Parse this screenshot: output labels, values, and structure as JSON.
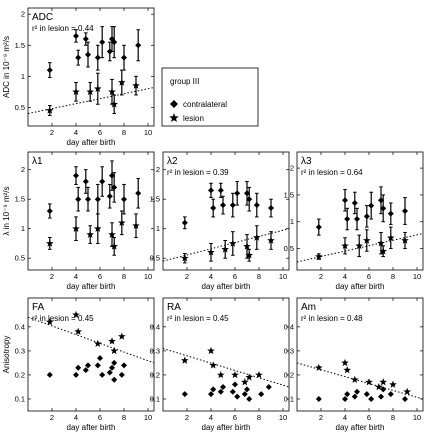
{
  "legend": {
    "title": "group III",
    "entries": [
      "contralateral",
      "lesion"
    ]
  },
  "colors": {
    "ink": "#000000",
    "background": "#ffffff"
  },
  "chart_data": [
    {
      "type": "scatter",
      "title": "ADC",
      "annotation": "r² in lesion = 0.44",
      "xlabel": "day after birth",
      "ylabel": "ADC in 10⁻⁹ m²/s",
      "xlim": [
        0,
        10.5
      ],
      "ylim": [
        0.2,
        2.1
      ],
      "xticks": [
        2,
        4,
        6,
        8,
        10
      ],
      "yticks": [
        0.5,
        1,
        1.5,
        2
      ],
      "yticklabels": [
        "0.5",
        "1",
        "1.5",
        "2"
      ],
      "grid": false,
      "trendline": [
        [
          0,
          0.4
        ],
        [
          10.5,
          0.82
        ]
      ],
      "series": [
        {
          "name": "contralateral",
          "marker": "diamond",
          "points": [
            [
              2,
              1.1,
              0.12
            ],
            [
              4,
              1.65,
              0.1
            ],
            [
              4,
              1.3,
              0.12
            ],
            [
              5,
              1.6,
              0.1
            ],
            [
              5,
              1.35,
              0.2
            ],
            [
              6,
              1.55,
              0.25
            ],
            [
              6,
              1.3,
              0.2
            ],
            [
              7,
              1.6,
              0.2
            ],
            [
              7,
              1.55,
              0.25
            ],
            [
              7,
              1.4,
              0.15
            ],
            [
              8,
              1.3,
              0.2
            ],
            [
              9,
              1.5,
              0.25
            ]
          ]
        },
        {
          "name": "lesion",
          "marker": "star",
          "points": [
            [
              2,
              0.45,
              0.08
            ],
            [
              4,
              0.75,
              0.15
            ],
            [
              5,
              0.75,
              0.15
            ],
            [
              6,
              0.8,
              0.25
            ],
            [
              7,
              0.75,
              0.2
            ],
            [
              7,
              0.55,
              0.15
            ],
            [
              8,
              0.9,
              0.2
            ],
            [
              9,
              0.85,
              0.15
            ]
          ]
        }
      ]
    },
    {
      "type": "scatter",
      "title": "λ1",
      "annotation": "",
      "xlabel": "day after birth",
      "ylabel": "λ in 10⁻⁹ m²/s",
      "xlim": [
        0,
        10.5
      ],
      "ylim": [
        0.3,
        2.3
      ],
      "xticks": [
        2,
        4,
        6,
        8,
        10
      ],
      "yticks": [
        0.5,
        1,
        1.5,
        2
      ],
      "yticklabels": [
        "0.5",
        "1",
        "1.5",
        "2"
      ],
      "grid": false,
      "trendline": null,
      "series": [
        {
          "name": "contralateral",
          "marker": "diamond",
          "points": [
            [
              2,
              1.3,
              0.12
            ],
            [
              4,
              1.9,
              0.15
            ],
            [
              4,
              1.5,
              0.2
            ],
            [
              5,
              1.8,
              0.2
            ],
            [
              5,
              1.5,
              0.2
            ],
            [
              6,
              1.8,
              0.25
            ],
            [
              6,
              1.5,
              0.25
            ],
            [
              7,
              1.9,
              0.25
            ],
            [
              7,
              1.7,
              0.25
            ],
            [
              7,
              1.55,
              0.2
            ],
            [
              8,
              1.5,
              0.25
            ],
            [
              9,
              1.6,
              0.25
            ]
          ]
        },
        {
          "name": "lesion",
          "marker": "star",
          "points": [
            [
              2,
              0.75,
              0.1
            ],
            [
              4,
              1.0,
              0.2
            ],
            [
              5,
              0.9,
              0.15
            ],
            [
              6,
              1.0,
              0.25
            ],
            [
              7,
              0.9,
              0.2
            ],
            [
              7,
              0.7,
              0.15
            ],
            [
              8,
              1.1,
              0.2
            ],
            [
              9,
              1.05,
              0.2
            ]
          ]
        }
      ]
    },
    {
      "type": "scatter",
      "title": "λ2",
      "annotation": "r² in lesion = 0.39",
      "xlabel": "day after birth",
      "ylabel": "",
      "xlim": [
        0,
        10.5
      ],
      "ylim": [
        0.3,
        2.3
      ],
      "xticks": [
        2,
        4,
        6,
        8,
        10
      ],
      "yticks": [
        0.5,
        1,
        1.5,
        2
      ],
      "yticklabels": [
        "0.5",
        "1",
        "1.5",
        "2"
      ],
      "grid": false,
      "trendline": [
        [
          0,
          0.45
        ],
        [
          10.5,
          1.0
        ]
      ],
      "series": [
        {
          "name": "contralateral",
          "marker": "diamond",
          "points": [
            [
              2,
              1.1,
              0.1
            ],
            [
              4,
              1.65,
              0.12
            ],
            [
              4,
              1.35,
              0.15
            ],
            [
              5,
              1.65,
              0.12
            ],
            [
              5,
              1.4,
              0.15
            ],
            [
              6,
              1.6,
              0.2
            ],
            [
              6,
              1.4,
              0.2
            ],
            [
              7,
              1.6,
              0.2
            ],
            [
              7,
              1.5,
              0.2
            ],
            [
              8,
              1.4,
              0.2
            ],
            [
              9,
              1.35,
              0.15
            ]
          ]
        },
        {
          "name": "lesion",
          "marker": "star",
          "points": [
            [
              2,
              0.5,
              0.08
            ],
            [
              4,
              0.6,
              0.15
            ],
            [
              5,
              0.65,
              0.15
            ],
            [
              6,
              0.75,
              0.2
            ],
            [
              7,
              0.7,
              0.2
            ],
            [
              7,
              0.55,
              0.1
            ],
            [
              8,
              0.85,
              0.2
            ],
            [
              9,
              0.8,
              0.15
            ]
          ]
        }
      ]
    },
    {
      "type": "scatter",
      "title": "λ3",
      "annotation": "r² in lesion = 0.64",
      "xlabel": "day after birth",
      "ylabel": "",
      "xlim": [
        0,
        10.5
      ],
      "ylim": [
        0.1,
        2.3
      ],
      "xticks": [
        2,
        4,
        6,
        8,
        10
      ],
      "yticks": [
        0.5,
        1,
        1.5,
        2
      ],
      "yticklabels": [
        "0.5",
        "1",
        "1.5",
        "2"
      ],
      "grid": false,
      "trendline": [
        [
          0,
          0.25
        ],
        [
          10.5,
          0.78
        ]
      ],
      "series": [
        {
          "name": "contralateral",
          "marker": "diamond",
          "points": [
            [
              2,
              0.9,
              0.15
            ],
            [
              4,
              1.4,
              0.2
            ],
            [
              4,
              1.05,
              0.2
            ],
            [
              5,
              1.35,
              0.2
            ],
            [
              5,
              1.05,
              0.2
            ],
            [
              6,
              1.3,
              0.25
            ],
            [
              6,
              1.1,
              0.2
            ],
            [
              7,
              1.4,
              0.25
            ],
            [
              7,
              1.25,
              0.25
            ],
            [
              8,
              1.15,
              0.2
            ],
            [
              9,
              1.2,
              0.25
            ]
          ]
        },
        {
          "name": "lesion",
          "marker": "star",
          "points": [
            [
              2,
              0.35,
              0.05
            ],
            [
              4,
              0.55,
              0.15
            ],
            [
              5,
              0.55,
              0.2
            ],
            [
              6,
              0.65,
              0.2
            ],
            [
              7,
              0.6,
              0.2
            ],
            [
              7,
              0.45,
              0.1
            ],
            [
              8,
              0.7,
              0.2
            ],
            [
              9,
              0.65,
              0.15
            ]
          ]
        }
      ]
    },
    {
      "type": "scatter",
      "title": "FA",
      "annotation": "r² in lesion = 0.45",
      "xlabel": "day after birth",
      "ylabel": "Anisotropy",
      "xlim": [
        0,
        10.5
      ],
      "ylim": [
        0.05,
        0.52
      ],
      "xticks": [
        2,
        4,
        6,
        8,
        10
      ],
      "yticks": [
        0.1,
        0.2,
        0.3,
        0.4
      ],
      "yticklabels": [
        "0.1",
        "0.2",
        "0.3",
        "0.4"
      ],
      "grid": false,
      "trendline": [
        [
          0,
          0.44
        ],
        [
          10.5,
          0.25
        ]
      ],
      "series": [
        {
          "name": "contralateral",
          "marker": "diamond",
          "points": [
            [
              2,
              0.2
            ],
            [
              4,
              0.2
            ],
            [
              4,
              0.23
            ],
            [
              5,
              0.22
            ],
            [
              5,
              0.24
            ],
            [
              6,
              0.2
            ],
            [
              6,
              0.24
            ],
            [
              6,
              0.27
            ],
            [
              7,
              0.18
            ],
            [
              7,
              0.21
            ],
            [
              7,
              0.23
            ],
            [
              7,
              0.25
            ],
            [
              8,
              0.2
            ],
            [
              8,
              0.24
            ]
          ]
        },
        {
          "name": "lesion",
          "marker": "star",
          "points": [
            [
              2,
              0.42
            ],
            [
              4,
              0.45
            ],
            [
              4,
              0.38
            ],
            [
              6,
              0.33
            ],
            [
              7,
              0.34
            ],
            [
              7,
              0.3
            ],
            [
              8,
              0.36
            ]
          ]
        }
      ]
    },
    {
      "type": "scatter",
      "title": "RA",
      "annotation": "r² in lesion = 0.45",
      "xlabel": "day after birth",
      "ylabel": "",
      "xlim": [
        0,
        10.5
      ],
      "ylim": [
        0.05,
        0.52
      ],
      "xticks": [
        2,
        4,
        6,
        8,
        10
      ],
      "yticks": [
        0.1,
        0.2,
        0.3,
        0.4
      ],
      "yticklabels": [
        "0.1",
        "0.2",
        "0.3",
        "0.4"
      ],
      "grid": false,
      "trendline": [
        [
          0,
          0.31
        ],
        [
          10.5,
          0.15
        ]
      ],
      "series": [
        {
          "name": "contralateral",
          "marker": "diamond",
          "points": [
            [
              2,
              0.12
            ],
            [
              4,
              0.12
            ],
            [
              4,
              0.14
            ],
            [
              5,
              0.13
            ],
            [
              5,
              0.15
            ],
            [
              6,
              0.11
            ],
            [
              6,
              0.13
            ],
            [
              6,
              0.16
            ],
            [
              7,
              0.1
            ],
            [
              7,
              0.12
            ],
            [
              7,
              0.14
            ],
            [
              8,
              0.12
            ],
            [
              9,
              0.15
            ]
          ]
        },
        {
          "name": "lesion",
          "marker": "star",
          "points": [
            [
              2,
              0.26
            ],
            [
              4,
              0.3
            ],
            [
              4,
              0.24
            ],
            [
              5,
              0.2
            ],
            [
              6,
              0.2
            ],
            [
              7,
              0.19
            ],
            [
              7,
              0.17
            ],
            [
              8,
              0.2
            ]
          ]
        }
      ]
    },
    {
      "type": "scatter",
      "title": "Am",
      "annotation": "r² in lesion = 0.48",
      "xlabel": "day after birth",
      "ylabel": "",
      "xlim": [
        0,
        10.5
      ],
      "ylim": [
        0.05,
        0.52
      ],
      "xticks": [
        2,
        4,
        6,
        8,
        10
      ],
      "yticks": [
        0.1,
        0.2,
        0.3,
        0.4
      ],
      "yticklabels": [
        "0.1",
        "0.2",
        "0.3",
        "0.4"
      ],
      "grid": false,
      "trendline": [
        [
          0,
          0.25
        ],
        [
          10.5,
          0.1
        ]
      ],
      "series": [
        {
          "name": "contralateral",
          "marker": "diamond",
          "points": [
            [
              2,
              0.1
            ],
            [
              4,
              0.1
            ],
            [
              4,
              0.12
            ],
            [
              5,
              0.11
            ],
            [
              5,
              0.13
            ],
            [
              6,
              0.1
            ],
            [
              6,
              0.12
            ],
            [
              7,
              0.11
            ],
            [
              7,
              0.14
            ],
            [
              8,
              0.12
            ],
            [
              9,
              0.1
            ]
          ]
        },
        {
          "name": "lesion",
          "marker": "star",
          "points": [
            [
              2,
              0.23
            ],
            [
              4,
              0.25
            ],
            [
              4,
              0.22
            ],
            [
              5,
              0.18
            ],
            [
              6,
              0.17
            ],
            [
              7,
              0.17
            ],
            [
              7,
              0.15
            ],
            [
              8,
              0.16
            ],
            [
              9,
              0.13
            ]
          ]
        }
      ]
    }
  ]
}
